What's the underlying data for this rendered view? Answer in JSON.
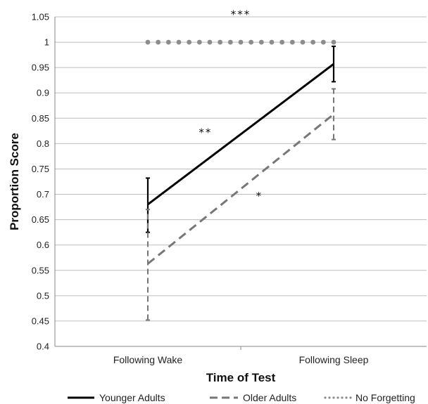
{
  "chart_data": {
    "type": "line",
    "xlabel": "Time of Test",
    "ylabel": "Proportion Score",
    "ylim": [
      0.4,
      1.05
    ],
    "yticks": [
      0.4,
      0.45,
      0.5,
      0.55,
      0.6,
      0.65,
      0.7,
      0.75,
      0.8,
      0.85,
      0.9,
      0.95,
      1,
      1.05
    ],
    "ytick_labels": [
      "0.4",
      "0.45",
      "0.5",
      "0.55",
      "0.6",
      "0.65",
      "0.7",
      "0.75",
      "0.8",
      "0.85",
      "0.9",
      "0.95",
      "1",
      "1.05"
    ],
    "categories": [
      "Following Wake",
      "Following Sleep"
    ],
    "grid": true,
    "legend_position": "bottom",
    "series": [
      {
        "name": "Younger Adults",
        "values": [
          0.68,
          0.957
        ],
        "err_low": [
          0.625,
          0.922
        ],
        "err_high": [
          0.732,
          0.992
        ],
        "color": "#000000",
        "style": "solid"
      },
      {
        "name": "Older Adults",
        "values": [
          0.563,
          0.858
        ],
        "err_low": [
          0.452,
          0.808
        ],
        "err_high": [
          0.67,
          0.908
        ],
        "color": "#777777",
        "style": "dashed"
      },
      {
        "name": "No Forgetting",
        "values": [
          1,
          1
        ],
        "color": "#8c8c8c",
        "style": "dotted"
      }
    ],
    "annotations": [
      {
        "text": "***",
        "x": 0.5,
        "y": 1.048
      },
      {
        "text": "**",
        "x": 0.405,
        "y": 0.815
      },
      {
        "text": "*",
        "x": 0.55,
        "y": 0.69
      }
    ]
  }
}
